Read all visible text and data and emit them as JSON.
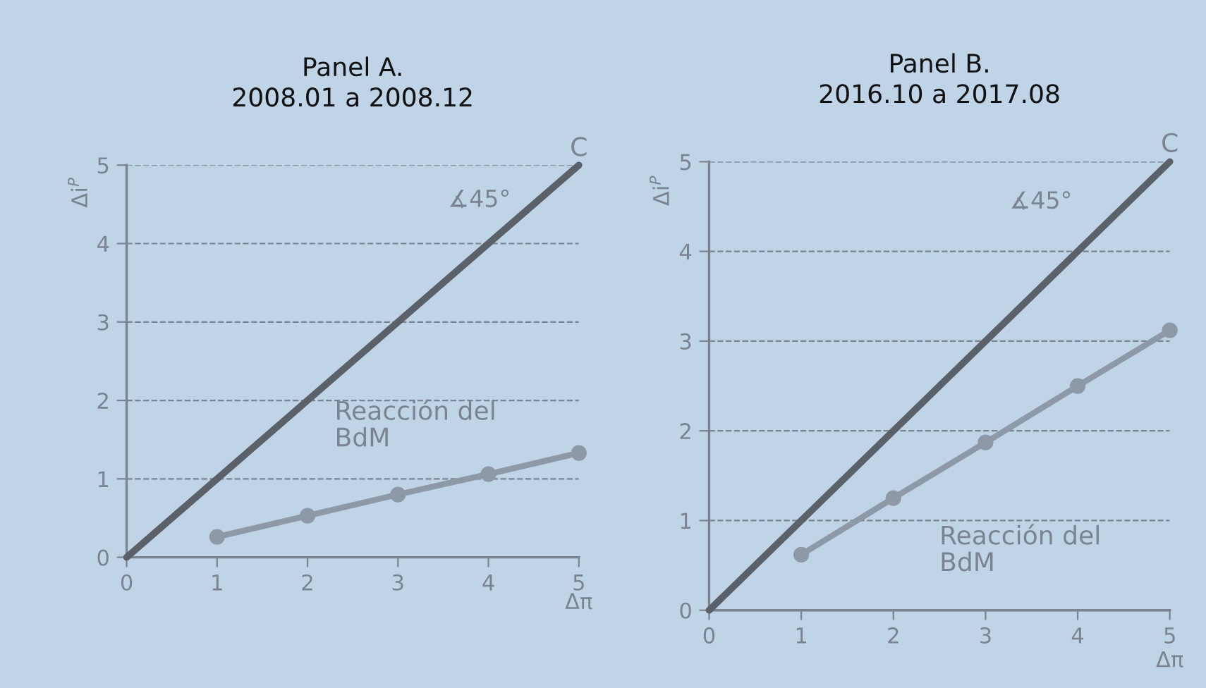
{
  "chart_data": [
    {
      "type": "line",
      "title": "Panel A.\n2008.01 a 2008.12",
      "xlabel": "Δπ",
      "ylabel": "Δi$^{P}$",
      "series": [
        {
          "name": "C",
          "color": "#5b6169",
          "x": [
            0,
            5
          ],
          "values": [
            0,
            5
          ],
          "marker": "none"
        },
        {
          "name": "Reacción del BdM",
          "color": "#8d99a6",
          "x": [
            1,
            2,
            3,
            4,
            5
          ],
          "values": [
            0.26,
            0.53,
            0.8,
            1.06,
            1.33
          ],
          "marker": "circle"
        }
      ],
      "annotations": [
        "∡45°"
      ],
      "xlim": [
        0,
        5
      ],
      "ylim": [
        0,
        5
      ],
      "xticks": [
        0,
        1,
        2,
        3,
        4,
        5
      ],
      "yticks": [
        0,
        1,
        2,
        3,
        4,
        5
      ],
      "grid": "y",
      "legend": false
    },
    {
      "type": "line",
      "title": "Panel B.\n2016.10 a 2017.08",
      "xlabel": "Δπ",
      "ylabel": "Δi$^{P}$",
      "series": [
        {
          "name": "C",
          "color": "#5b6169",
          "x": [
            0,
            5
          ],
          "values": [
            0,
            5
          ],
          "marker": "none"
        },
        {
          "name": "Reacción del BdM",
          "color": "#8d99a6",
          "x": [
            1,
            2,
            3,
            4,
            5
          ],
          "values": [
            0.62,
            1.25,
            1.87,
            2.5,
            3.12
          ],
          "marker": "circle"
        }
      ],
      "annotations": [
        "∡45°"
      ],
      "xlim": [
        0,
        5
      ],
      "ylim": [
        0,
        5
      ],
      "xticks": [
        0,
        1,
        2,
        3,
        4,
        5
      ],
      "yticks": [
        0,
        1,
        2,
        3,
        4,
        5
      ],
      "grid": "y",
      "legend": false
    }
  ]
}
